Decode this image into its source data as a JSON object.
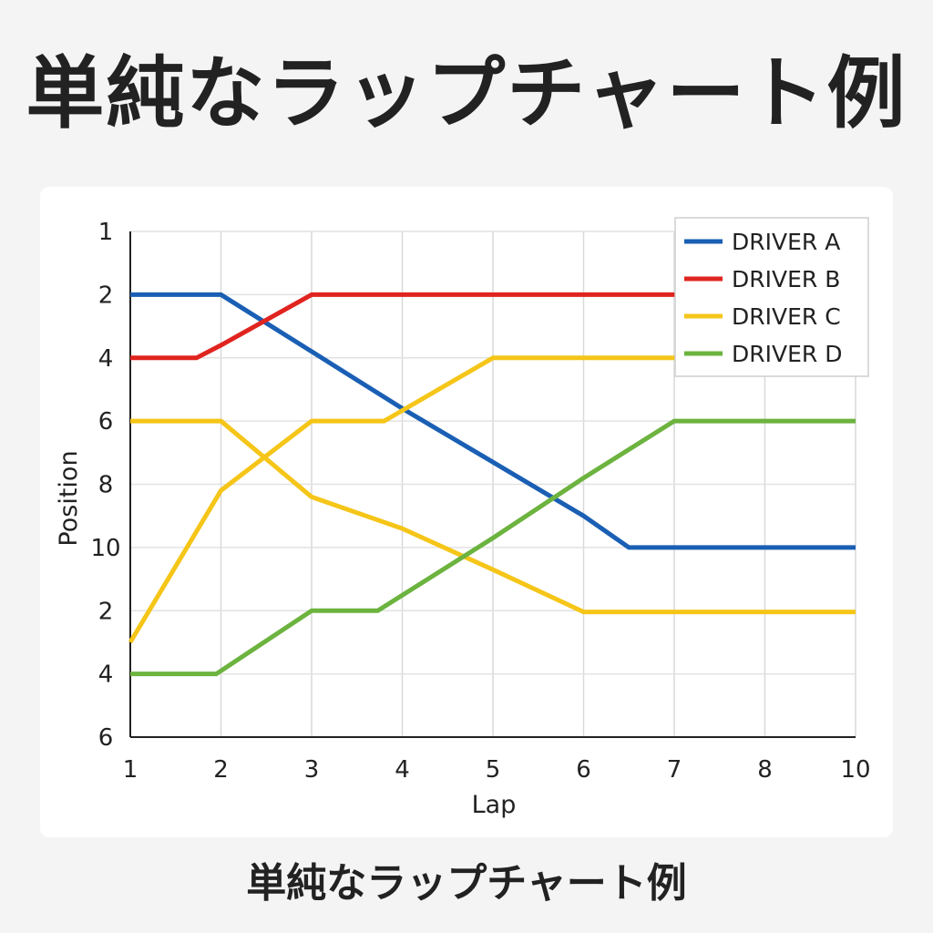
{
  "title": "単純なラップチャート例",
  "subtitle": "単純なラップチャート例",
  "chart_data": {
    "type": "line",
    "xlabel": "Lap",
    "ylabel": "Position",
    "x_ticks": [
      1,
      2,
      3,
      4,
      5,
      6,
      7,
      8,
      10
    ],
    "y_ticks": [
      {
        "rank": 1,
        "label": "1"
      },
      {
        "rank": 2,
        "label": "2"
      },
      {
        "rank": 3,
        "label": "4"
      },
      {
        "rank": 4,
        "label": "6"
      },
      {
        "rank": 5,
        "label": "8"
      },
      {
        "rank": 6,
        "label": "10"
      },
      {
        "rank": 7,
        "label": "2"
      },
      {
        "rank": 8,
        "label": "4"
      },
      {
        "rank": 9,
        "label": "6"
      }
    ],
    "y_inverted": true,
    "grid": true,
    "legend_position": "top-right",
    "series": [
      {
        "name": "DRIVER A",
        "color": "#1a5fb4",
        "points": [
          [
            1,
            2
          ],
          [
            2,
            2
          ],
          [
            3,
            2.9
          ],
          [
            4,
            3.8
          ],
          [
            5,
            4.65
          ],
          [
            6,
            5.5
          ],
          [
            6.5,
            6
          ],
          [
            7,
            6
          ],
          [
            10,
            6
          ]
        ]
      },
      {
        "name": "DRIVER B",
        "color": "#e0241f",
        "points": [
          [
            1,
            3
          ],
          [
            1.73,
            3
          ],
          [
            2,
            2.8
          ],
          [
            3,
            2
          ],
          [
            7,
            2
          ],
          [
            7.8,
            2
          ]
        ]
      },
      {
        "name": "DRIVER C",
        "color": "#f5c518",
        "points": [
          [
            1,
            7.5
          ],
          [
            2,
            5.1
          ],
          [
            3,
            4
          ],
          [
            3.8,
            4
          ],
          [
            5,
            3
          ],
          [
            7.8,
            3
          ]
        ]
      },
      {
        "name": "DRIVER C",
        "color": "#f5c518",
        "points": [
          [
            1,
            4
          ],
          [
            2,
            4
          ],
          [
            3,
            5.2
          ],
          [
            4,
            5.7
          ],
          [
            5,
            6.35
          ],
          [
            6,
            7.02
          ],
          [
            7,
            7.02
          ],
          [
            10,
            7.02
          ]
        ]
      },
      {
        "name": "DRIVER D",
        "color": "#6cb33f",
        "points": [
          [
            1,
            8
          ],
          [
            1.95,
            8
          ],
          [
            3,
            7
          ],
          [
            3.73,
            7
          ],
          [
            5,
            5.85
          ],
          [
            6,
            4.9
          ],
          [
            7,
            4
          ],
          [
            10,
            4
          ]
        ]
      }
    ],
    "legend": [
      {
        "name": "DRIVER A",
        "color": "#1a5fb4"
      },
      {
        "name": "DRIVER B",
        "color": "#e0241f"
      },
      {
        "name": "DRIVER C",
        "color": "#f5c518"
      },
      {
        "name": "DRIVER D",
        "color": "#6cb33f"
      }
    ]
  }
}
